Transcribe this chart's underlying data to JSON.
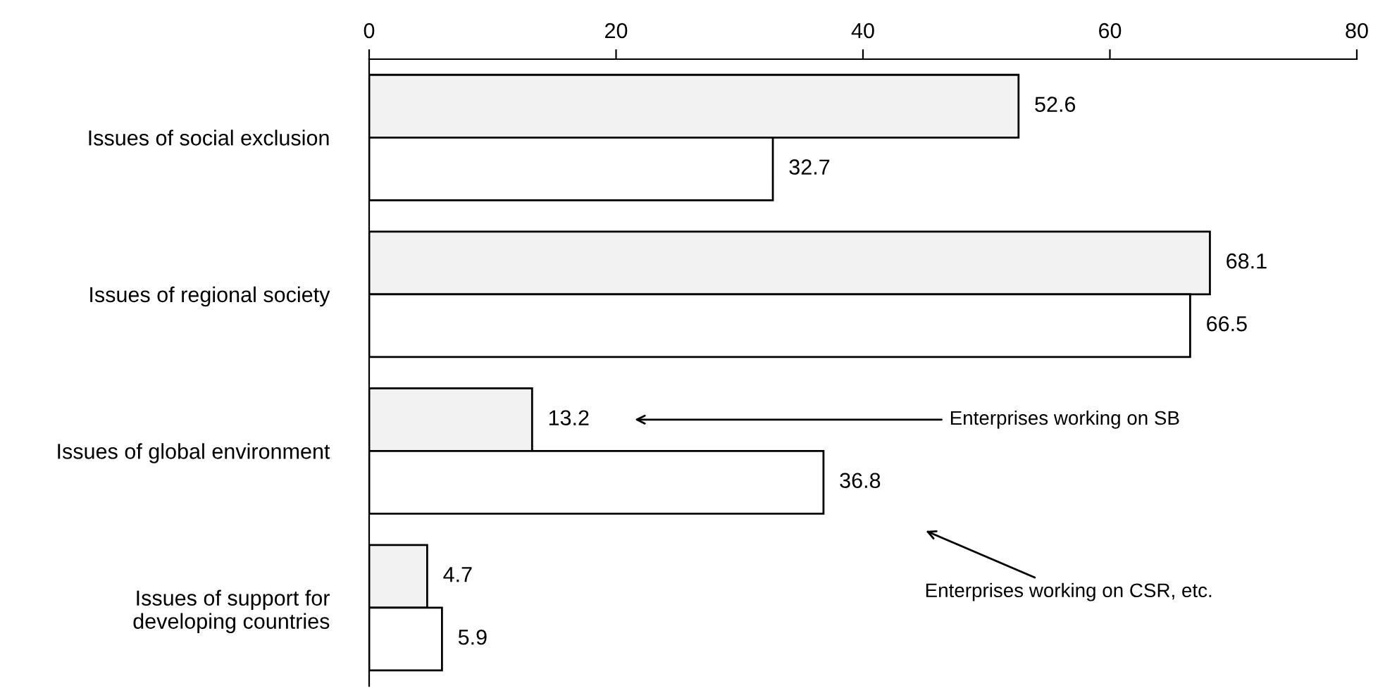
{
  "chart_data": {
    "type": "bar",
    "orientation": "horizontal",
    "categories": [
      "Issues of social exclusion",
      "Issues of regional society",
      "Issues of global environment",
      "Issues of support for\ndeveloping countries"
    ],
    "series": [
      {
        "name": "Enterprises working on SB",
        "color": "#f2f2f2",
        "values": [
          52.6,
          68.1,
          13.2,
          4.7
        ]
      },
      {
        "name": "Enterprises working on CSR, etc.",
        "color": "#ffffff",
        "values": [
          32.7,
          66.5,
          36.8,
          5.9
        ]
      }
    ],
    "xlim": [
      0,
      80
    ],
    "xticks": [
      0,
      20,
      40,
      60,
      80
    ],
    "data_labels": true,
    "grid": false,
    "legend": false
  }
}
